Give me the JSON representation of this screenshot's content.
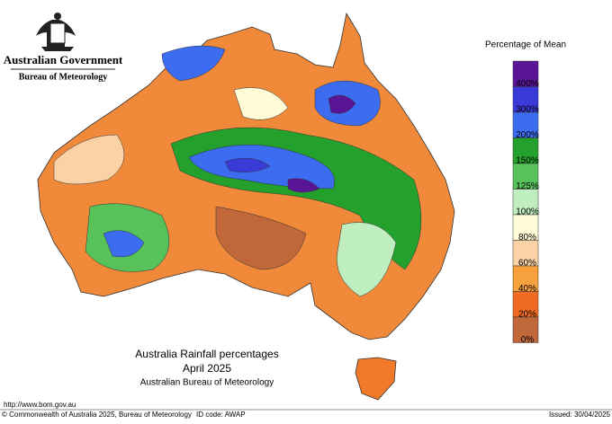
{
  "header": {
    "government": "Australian Government",
    "agency": "Bureau of Meteorology"
  },
  "legend": {
    "title": "Percentage of Mean",
    "colors": [
      "#5a1496",
      "#3a3ad8",
      "#3c6cf0",
      "#24a02c",
      "#58c25a",
      "#bfeec0",
      "#fffbd6",
      "#fbd2a6",
      "#f7a03e",
      "#f06c22",
      "#c0683a"
    ],
    "labels": [
      "400%",
      "300%",
      "200%",
      "150%",
      "125%",
      "100%",
      "80%",
      "60%",
      "40%",
      "20%",
      "0%"
    ]
  },
  "caption": {
    "title": "Australia Rainfall percentages",
    "period": "April 2025",
    "source": "Australian Bureau of Meteorology"
  },
  "footer": {
    "url": "http://www.bom.gov.au",
    "copyright": "© Commonwealth of Australia 2025, Bureau of Meteorology",
    "id_code": "ID code: AWAP",
    "issued": "Issued: 30/04/2025"
  }
}
